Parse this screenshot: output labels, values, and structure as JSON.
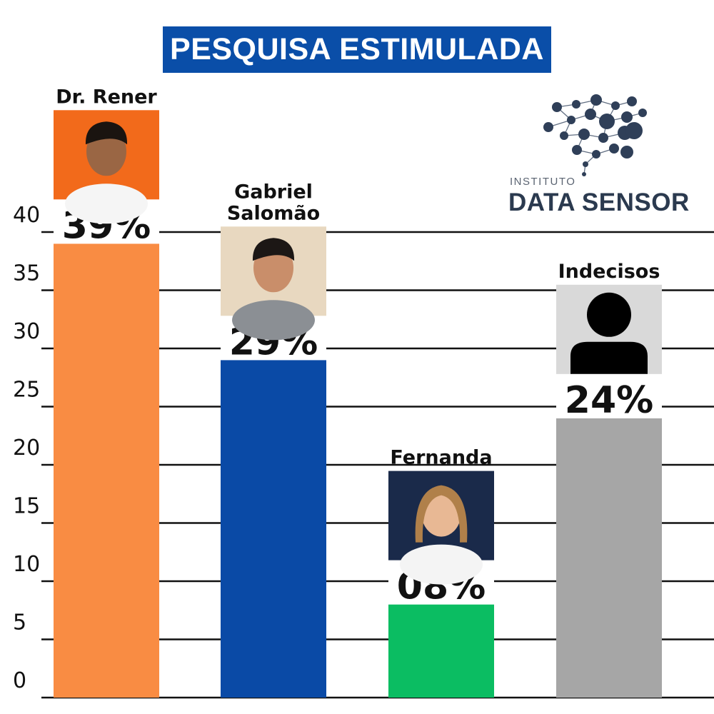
{
  "title": "PESQUISA ESTIMULADA",
  "logo": {
    "small_text": "INSTITUTO",
    "big_text": "DATA SENSOR",
    "icon": "brain-network-icon"
  },
  "colors": {
    "title_bg": "#0a4ea8",
    "Dr. Rener": "#f98c43",
    "Gabriel Salomão": "#0a4aa6",
    "Fernanda": "#0bbd62",
    "Indecisos": "#a6a6a6"
  },
  "chart_data": {
    "type": "bar",
    "title": "PESQUISA ESTIMULADA",
    "categories": [
      "Dr. Rener",
      "Gabriel Salomão",
      "Fernanda",
      "Indecisos"
    ],
    "values": [
      39,
      29,
      8,
      24
    ],
    "value_labels": [
      "39%",
      "29%",
      "08%",
      "24%"
    ],
    "name_lines": [
      [
        "Dr. Rener"
      ],
      [
        "Gabriel",
        "Salomão"
      ],
      [
        "Fernanda"
      ],
      [
        "Indecisos"
      ]
    ],
    "yticks": [
      "0",
      "5",
      "10",
      "15",
      "20",
      "25",
      "30",
      "35",
      "40"
    ],
    "ylim": [
      0,
      40
    ],
    "grid": true,
    "xlabel": "",
    "ylabel": ""
  }
}
